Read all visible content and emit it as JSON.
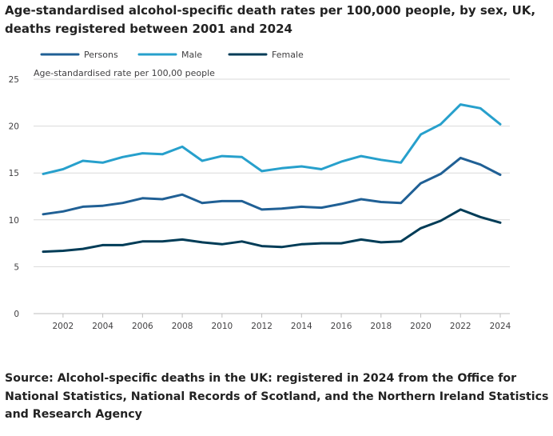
{
  "chart_data": {
    "type": "line",
    "title": "Age-standardised alcohol-specific death rates per 100,000 people, by sex, UK, deaths registered between 2001 and 2024",
    "ylabel": "Age-standardised rate per 100,00 people",
    "xlabel": "",
    "ylim": [
      0,
      25
    ],
    "yticks": [
      0,
      5,
      10,
      15,
      20,
      25
    ],
    "xlim": [
      2001,
      2024
    ],
    "xticks": [
      2002,
      2004,
      2006,
      2008,
      2010,
      2012,
      2014,
      2016,
      2018,
      2020,
      2022,
      2024
    ],
    "grid": true,
    "legend_position": "top-left",
    "x": [
      2001,
      2002,
      2003,
      2004,
      2005,
      2006,
      2007,
      2008,
      2009,
      2010,
      2011,
      2012,
      2013,
      2014,
      2015,
      2016,
      2017,
      2018,
      2019,
      2020,
      2021,
      2022,
      2023,
      2024
    ],
    "series": [
      {
        "name": "Persons",
        "color": "#206095",
        "values": [
          10.6,
          10.9,
          11.4,
          11.5,
          11.8,
          12.3,
          12.2,
          12.7,
          11.8,
          12.0,
          12.0,
          11.1,
          11.2,
          11.4,
          11.3,
          11.7,
          12.2,
          11.9,
          11.8,
          13.9,
          14.9,
          16.6,
          15.9,
          14.8
        ]
      },
      {
        "name": "Male",
        "color": "#27a0cc",
        "values": [
          14.9,
          15.4,
          16.3,
          16.1,
          16.7,
          17.1,
          17.0,
          17.8,
          16.3,
          16.8,
          16.7,
          15.2,
          15.5,
          15.7,
          15.4,
          16.2,
          16.8,
          16.4,
          16.1,
          19.1,
          20.2,
          22.3,
          21.9,
          20.2
        ]
      },
      {
        "name": "Female",
        "color": "#003c57",
        "values": [
          6.6,
          6.7,
          6.9,
          7.3,
          7.3,
          7.7,
          7.7,
          7.9,
          7.6,
          7.4,
          7.7,
          7.2,
          7.1,
          7.4,
          7.5,
          7.5,
          7.9,
          7.6,
          7.7,
          9.1,
          9.9,
          11.1,
          10.3,
          9.7
        ]
      }
    ]
  },
  "source": "Source: Alcohol-specific deaths in the UK: registered in 2024 from the Office for National Statistics, National Records of Scotland, and the Northern Ireland Statistics and Research Agency"
}
